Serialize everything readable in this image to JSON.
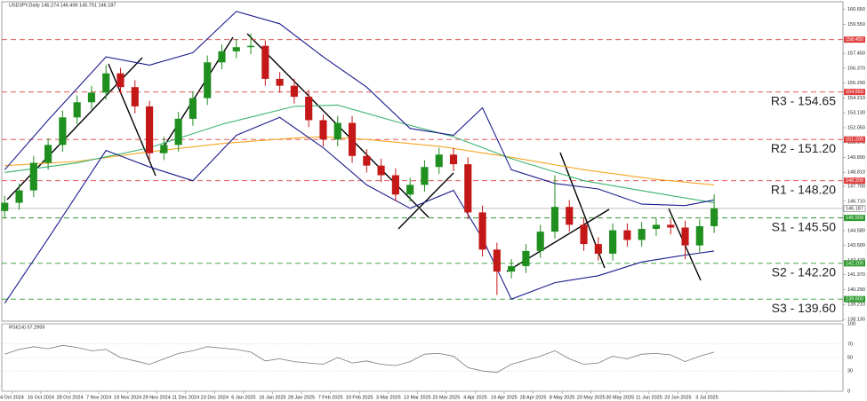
{
  "chart_data": [
    {
      "type": "candlestick",
      "title": "USDJPY,Daily  146.274 146.406 145.751 146.187",
      "xlim": [
        -0.2,
        57.9
      ],
      "ylim": [
        138.0,
        161.2
      ],
      "up_color": "#1f8f1f",
      "down_color": "#c41818",
      "open": [
        146.0,
        146.6,
        147.5,
        149.5,
        150.8,
        152.8,
        153.9,
        154.6,
        156.0,
        155.0,
        153.6,
        150.2,
        150.8,
        152.7,
        154.2,
        156.8,
        157.6,
        157.9,
        158.0,
        155.6,
        155.1,
        154.3,
        152.6,
        151.2,
        152.4,
        150.0,
        149.3,
        148.6,
        147.2,
        147.9,
        149.2,
        150.1,
        149.4,
        145.9,
        143.2,
        141.6,
        142.0,
        143.1,
        144.5,
        146.3,
        145.0,
        143.6,
        142.9,
        144.6,
        143.9,
        144.7,
        145.0,
        144.8,
        143.5,
        144.9
      ],
      "high": [
        147.1,
        148.0,
        150.0,
        151.3,
        153.3,
        154.4,
        155.1,
        156.6,
        156.4,
        155.5,
        154.0,
        151.4,
        153.2,
        154.7,
        157.3,
        158.1,
        158.5,
        158.9,
        158.4,
        156.1,
        155.6,
        154.8,
        153.0,
        152.9,
        152.9,
        150.5,
        149.8,
        149.1,
        148.4,
        149.7,
        150.6,
        150.6,
        149.9,
        146.4,
        143.7,
        142.5,
        143.6,
        145.0,
        148.6,
        146.8,
        145.5,
        144.1,
        145.1,
        145.1,
        145.2,
        145.5,
        145.4,
        145.3,
        145.4,
        147.2
      ],
      "low": [
        145.5,
        146.1,
        147.0,
        149.0,
        150.3,
        152.3,
        153.4,
        154.1,
        154.5,
        153.1,
        149.7,
        149.7,
        150.3,
        152.2,
        153.7,
        156.3,
        157.1,
        157.4,
        155.1,
        154.6,
        153.8,
        152.1,
        150.7,
        150.7,
        149.5,
        148.8,
        148.1,
        146.7,
        146.7,
        147.4,
        148.7,
        148.9,
        145.4,
        142.7,
        139.9,
        141.1,
        141.5,
        142.6,
        144.0,
        144.5,
        143.1,
        142.4,
        142.4,
        143.4,
        143.4,
        144.2,
        144.3,
        142.5,
        143.0,
        144.4
      ],
      "close": [
        146.6,
        147.5,
        149.5,
        150.8,
        152.8,
        153.9,
        154.6,
        156.0,
        155.0,
        153.6,
        150.2,
        150.8,
        152.7,
        154.2,
        156.8,
        157.6,
        157.9,
        158.0,
        155.6,
        155.1,
        154.3,
        152.6,
        151.2,
        152.4,
        150.0,
        149.3,
        148.6,
        147.2,
        147.9,
        149.2,
        150.1,
        149.4,
        145.9,
        143.2,
        141.6,
        142.0,
        143.1,
        144.5,
        146.3,
        145.0,
        143.6,
        142.9,
        144.6,
        143.9,
        144.7,
        145.0,
        144.8,
        143.5,
        144.9,
        146.2
      ],
      "overlays": [
        {
          "color": "#f5a623",
          "x": [
            0,
            5,
            10,
            15,
            20,
            22,
            25,
            30,
            35,
            40,
            45,
            49
          ],
          "values": [
            149.3,
            149.6,
            150.3,
            150.9,
            151.3,
            151.4,
            151.2,
            150.7,
            149.9,
            149.0,
            148.3,
            147.9
          ]
        },
        {
          "color": "#3cb371",
          "x": [
            0,
            5,
            10,
            15,
            20,
            23,
            27,
            31,
            35,
            40,
            45,
            49
          ],
          "values": [
            148.8,
            149.5,
            150.6,
            152.3,
            153.6,
            153.7,
            152.5,
            151.4,
            149.8,
            148.2,
            147.3,
            146.6
          ]
        },
        {
          "color": "#1c1c8c",
          "x": [
            0,
            3,
            7,
            10,
            13,
            16,
            19,
            22,
            25,
            28,
            31,
            33,
            35,
            38,
            41,
            44,
            47,
            49
          ],
          "values": [
            149.0,
            152.6,
            157.2,
            156.6,
            157.5,
            160.5,
            159.6,
            157.2,
            155.0,
            152.0,
            151.5,
            153.5,
            149.0,
            148.0,
            147.6,
            146.5,
            146.4,
            146.8
          ]
        },
        {
          "color": "#1c1c8c",
          "x": [
            0,
            3,
            7,
            10,
            13,
            16,
            19,
            22,
            25,
            28,
            31,
            33,
            35,
            38,
            41,
            44,
            47,
            49
          ],
          "values": [
            139.3,
            144.0,
            150.4,
            149.2,
            148.2,
            151.5,
            152.8,
            150.6,
            147.9,
            146.2,
            147.5,
            144.0,
            139.6,
            140.8,
            141.3,
            142.3,
            142.8,
            143.1
          ]
        }
      ],
      "levels": [
        {
          "value": 158.45,
          "label": "158.450",
          "color": "#e04040"
        },
        {
          "value": 154.65,
          "label": "154.650",
          "text": "R3 - 154.65",
          "color": "#e04040"
        },
        {
          "value": 151.2,
          "label": "151.200",
          "text": "R2 - 151.20",
          "color": "#e04040"
        },
        {
          "value": 148.2,
          "label": "148.200",
          "text": "R1 - 148.20",
          "color": "#e04040"
        },
        {
          "value": 145.5,
          "label": "145.500",
          "text": "S1 - 145.50",
          "color": "#2e9a2e"
        },
        {
          "value": 142.2,
          "label": "142.200",
          "text": "S2 - 142.20",
          "color": "#2e9a2e"
        },
        {
          "value": 139.6,
          "label": "139.600",
          "text": "S3 - 139.60",
          "color": "#2e9a2e"
        }
      ],
      "current_price": {
        "value": 146.187,
        "label": "146.187"
      },
      "yticks": [
        {
          "value": 160.65,
          "label": "160.650"
        },
        {
          "value": 159.55,
          "label": "159.550"
        },
        {
          "value": 157.45,
          "label": "157.450"
        },
        {
          "value": 156.37,
          "label": "156.370"
        },
        {
          "value": 155.29,
          "label": "155.290"
        },
        {
          "value": 154.21,
          "label": "154.210"
        },
        {
          "value": 153.13,
          "label": "153.130"
        },
        {
          "value": 152.05,
          "label": "152.050"
        },
        {
          "value": 150.97,
          "label": "150.970"
        },
        {
          "value": 149.89,
          "label": "149.890"
        },
        {
          "value": 148.81,
          "label": "148.810"
        },
        {
          "value": 147.79,
          "label": "147.790"
        },
        {
          "value": 146.71,
          "label": "146.710"
        },
        {
          "value": 144.58,
          "label": "144.580"
        },
        {
          "value": 143.5,
          "label": "143.500"
        },
        {
          "value": 142.42,
          "label": "142.420"
        },
        {
          "value": 141.37,
          "label": "141.370"
        },
        {
          "value": 140.29,
          "label": "140.290"
        },
        {
          "value": 139.21,
          "label": "139.210"
        },
        {
          "value": 138.13,
          "label": "138.130"
        }
      ],
      "xticks": [
        {
          "value": 0.5,
          "label": "4 Oct 2024"
        },
        {
          "value": 2.5,
          "label": "16 Oct 2024"
        },
        {
          "value": 4.5,
          "label": "28 Oct 2024"
        },
        {
          "value": 6.5,
          "label": "7 Nov 2024"
        },
        {
          "value": 8.5,
          "label": "19 Nov 2024"
        },
        {
          "value": 10.5,
          "label": "29 Nov 2024"
        },
        {
          "value": 12.5,
          "label": "11 Dec 2024"
        },
        {
          "value": 14.5,
          "label": "23 Dec 2024"
        },
        {
          "value": 16.5,
          "label": "6 Jan 2025"
        },
        {
          "value": 18.5,
          "label": "16 Jan 2025"
        },
        {
          "value": 20.5,
          "label": "28 Jan 2025"
        },
        {
          "value": 22.5,
          "label": "7 Feb 2025"
        },
        {
          "value": 24.5,
          "label": "19 Feb 2025"
        },
        {
          "value": 26.5,
          "label": "3 Mar 2025"
        },
        {
          "value": 28.5,
          "label": "13 Mar 2025"
        },
        {
          "value": 30.5,
          "label": "25 Mar 2025"
        },
        {
          "value": 32.5,
          "label": "4 Apr 2025"
        },
        {
          "value": 34.5,
          "label": "16 Apr 2025"
        },
        {
          "value": 36.5,
          "label": "28 Apr 2025"
        },
        {
          "value": 38.5,
          "label": "8 May 2025"
        },
        {
          "value": 40.5,
          "label": "20 May 2025"
        },
        {
          "value": 42.5,
          "label": "30 May 2025"
        },
        {
          "value": 44.5,
          "label": "11 Jun 2025"
        },
        {
          "value": 46.5,
          "label": "23 Jun 2025"
        },
        {
          "value": 48.5,
          "label": "3 Jul 2025"
        }
      ]
    },
    {
      "type": "line",
      "title": "RSI(14) 57.2959",
      "color": "#777777",
      "ylim": [
        0,
        100
      ],
      "yticks": [
        100,
        70,
        50,
        30,
        0
      ],
      "values": [
        55,
        62,
        66,
        63,
        68,
        65,
        60,
        62,
        50,
        45,
        40,
        48,
        56,
        60,
        66,
        64,
        62,
        58,
        45,
        48,
        44,
        42,
        40,
        50,
        42,
        45,
        40,
        38,
        44,
        55,
        56,
        52,
        35,
        30,
        28,
        40,
        46,
        52,
        60,
        48,
        40,
        42,
        52,
        48,
        55,
        56,
        54,
        44,
        52,
        58
      ]
    }
  ]
}
